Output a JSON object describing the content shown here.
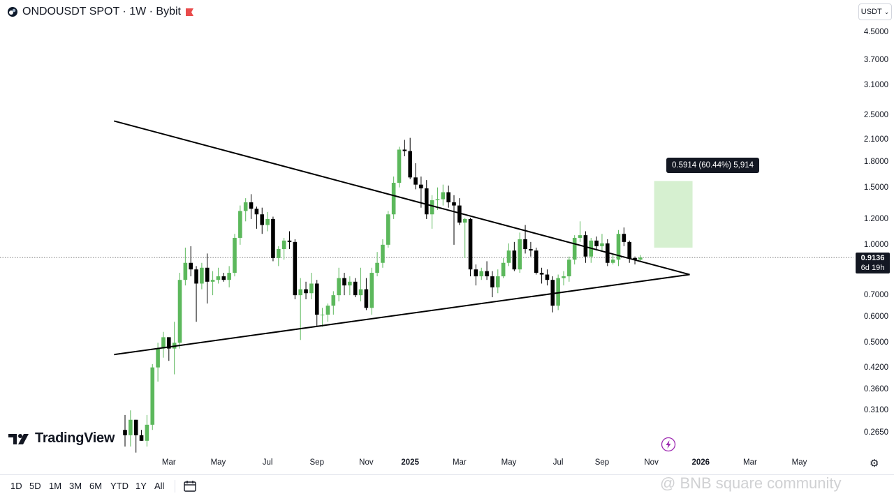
{
  "header": {
    "title": "ONDOUSDT SPOT · 1W · Bybit"
  },
  "currency_button": {
    "label": "USDT"
  },
  "price_tag": {
    "price": "0.9136",
    "countdown": "6d 19h"
  },
  "measure": {
    "label": "0.5914 (60.44%) 5,914"
  },
  "logo": {
    "text": "TradingView"
  },
  "ranges": [
    "1D",
    "5D",
    "1M",
    "3M",
    "6M",
    "YTD",
    "1Y",
    "All"
  ],
  "watermark": "@ BNB square community",
  "colors": {
    "up": "#5cb85c",
    "down": "#000000",
    "measure_fill": "#d6f0d0",
    "accent": "#e94b4b"
  },
  "chart_data": {
    "type": "candlestick",
    "interval": "1W",
    "scale": "log",
    "y_ticks": [
      "4.5000",
      "3.7000",
      "3.1000",
      "2.5000",
      "2.1000",
      "1.8000",
      "1.5000",
      "1.2000",
      "1.0000",
      "0.7000",
      "0.6000",
      "0.5000",
      "0.4200",
      "0.3600",
      "0.3100",
      "0.2650"
    ],
    "x_ticks": [
      {
        "label": "Mar",
        "week": 8
      },
      {
        "label": "May",
        "week": 17
      },
      {
        "label": "Jul",
        "week": 26
      },
      {
        "label": "Sep",
        "week": 35
      },
      {
        "label": "Nov",
        "week": 44
      },
      {
        "label": "2025",
        "week": 52
      },
      {
        "label": "Mar",
        "week": 61
      },
      {
        "label": "May",
        "week": 70
      },
      {
        "label": "Jul",
        "week": 79
      },
      {
        "label": "Sep",
        "week": 87
      },
      {
        "label": "Nov",
        "week": 96
      },
      {
        "label": "2026",
        "week": 105
      },
      {
        "label": "Mar",
        "week": 114
      },
      {
        "label": "May",
        "week": 123
      }
    ],
    "candles": [
      [
        0.27,
        0.3,
        0.24,
        0.26
      ],
      [
        0.26,
        0.31,
        0.24,
        0.29
      ],
      [
        0.29,
        0.29,
        0.23,
        0.26
      ],
      [
        0.26,
        0.27,
        0.25,
        0.25
      ],
      [
        0.25,
        0.3,
        0.24,
        0.28
      ],
      [
        0.28,
        0.43,
        0.27,
        0.42
      ],
      [
        0.42,
        0.5,
        0.38,
        0.48
      ],
      [
        0.48,
        0.54,
        0.45,
        0.52
      ],
      [
        0.52,
        0.52,
        0.44,
        0.48
      ],
      [
        0.48,
        0.58,
        0.4,
        0.5
      ],
      [
        0.5,
        0.82,
        0.48,
        0.78
      ],
      [
        0.78,
        0.98,
        0.75,
        0.88
      ],
      [
        0.88,
        0.99,
        0.8,
        0.84
      ],
      [
        0.84,
        0.86,
        0.58,
        0.76
      ],
      [
        0.76,
        0.88,
        0.73,
        0.85
      ],
      [
        0.85,
        0.94,
        0.66,
        0.77
      ],
      [
        0.77,
        0.83,
        0.7,
        0.78
      ],
      [
        0.78,
        0.85,
        0.76,
        0.8
      ],
      [
        0.8,
        0.82,
        0.77,
        0.78
      ],
      [
        0.78,
        0.86,
        0.74,
        0.82
      ],
      [
        0.82,
        1.08,
        0.8,
        1.05
      ],
      [
        1.05,
        1.32,
        1.0,
        1.27
      ],
      [
        1.27,
        1.39,
        1.18,
        1.35
      ],
      [
        1.35,
        1.43,
        1.2,
        1.29
      ],
      [
        1.29,
        1.31,
        1.12,
        1.24
      ],
      [
        1.24,
        1.3,
        1.08,
        1.15
      ],
      [
        1.15,
        1.26,
        1.1,
        1.2
      ],
      [
        1.2,
        1.22,
        0.89,
        0.91
      ],
      [
        0.91,
        0.99,
        0.86,
        0.97
      ],
      [
        0.97,
        1.05,
        0.9,
        1.03
      ],
      [
        1.03,
        1.1,
        0.97,
        1.02
      ],
      [
        1.02,
        1.04,
        0.68,
        0.7
      ],
      [
        0.7,
        0.79,
        0.51,
        0.73
      ],
      [
        0.73,
        0.77,
        0.68,
        0.71
      ],
      [
        0.71,
        0.82,
        0.68,
        0.76
      ],
      [
        0.76,
        0.78,
        0.56,
        0.61
      ],
      [
        0.61,
        0.64,
        0.56,
        0.61
      ],
      [
        0.61,
        0.66,
        0.58,
        0.65
      ],
      [
        0.65,
        0.72,
        0.61,
        0.7
      ],
      [
        0.7,
        0.85,
        0.67,
        0.79
      ],
      [
        0.79,
        0.82,
        0.7,
        0.75
      ],
      [
        0.75,
        0.8,
        0.7,
        0.77
      ],
      [
        0.77,
        0.79,
        0.69,
        0.7
      ],
      [
        0.7,
        0.85,
        0.67,
        0.73
      ],
      [
        0.73,
        0.79,
        0.63,
        0.64
      ],
      [
        0.64,
        0.85,
        0.61,
        0.82
      ],
      [
        0.82,
        0.95,
        0.8,
        0.88
      ],
      [
        0.88,
        1.04,
        0.85,
        1.0
      ],
      [
        1.0,
        1.27,
        0.98,
        1.24
      ],
      [
        1.24,
        1.62,
        1.2,
        1.55
      ],
      [
        1.55,
        2.0,
        1.5,
        1.96
      ],
      [
        1.96,
        2.1,
        1.87,
        1.94
      ],
      [
        1.94,
        2.13,
        1.59,
        1.61
      ],
      [
        1.61,
        1.78,
        1.48,
        1.53
      ],
      [
        1.53,
        1.62,
        1.3,
        1.49
      ],
      [
        1.49,
        1.58,
        1.2,
        1.24
      ],
      [
        1.24,
        1.42,
        1.12,
        1.37
      ],
      [
        1.37,
        1.5,
        1.28,
        1.38
      ],
      [
        1.38,
        1.53,
        1.32,
        1.45
      ],
      [
        1.45,
        1.52,
        1.3,
        1.35
      ],
      [
        1.35,
        1.42,
        1.0,
        1.32
      ],
      [
        1.32,
        1.39,
        1.15,
        1.17
      ],
      [
        1.17,
        1.21,
        0.91,
        1.2
      ],
      [
        1.2,
        1.21,
        0.8,
        0.84
      ],
      [
        0.84,
        0.87,
        0.75,
        0.8
      ],
      [
        0.8,
        0.85,
        0.78,
        0.83
      ],
      [
        0.83,
        0.89,
        0.78,
        0.8
      ],
      [
        0.8,
        0.83,
        0.69,
        0.74
      ],
      [
        0.74,
        0.84,
        0.71,
        0.8
      ],
      [
        0.8,
        0.91,
        0.79,
        0.88
      ],
      [
        0.88,
        1.01,
        0.86,
        0.96
      ],
      [
        0.96,
        1.02,
        0.83,
        0.84
      ],
      [
        0.84,
        1.09,
        0.82,
        1.04
      ],
      [
        1.04,
        1.15,
        0.94,
        0.97
      ],
      [
        0.97,
        1.02,
        0.92,
        0.96
      ],
      [
        0.96,
        0.98,
        0.81,
        0.82
      ],
      [
        0.82,
        0.85,
        0.76,
        0.81
      ],
      [
        0.81,
        0.84,
        0.75,
        0.78
      ],
      [
        0.78,
        0.8,
        0.62,
        0.65
      ],
      [
        0.65,
        0.81,
        0.63,
        0.79
      ],
      [
        0.79,
        0.83,
        0.75,
        0.8
      ],
      [
        0.8,
        0.92,
        0.77,
        0.9
      ],
      [
        0.9,
        1.07,
        0.87,
        1.05
      ],
      [
        1.05,
        1.18,
        1.02,
        1.07
      ],
      [
        1.07,
        1.1,
        0.88,
        0.92
      ],
      [
        0.92,
        1.05,
        0.88,
        1.03
      ],
      [
        1.03,
        1.06,
        0.96,
        0.99
      ],
      [
        0.99,
        1.08,
        0.96,
        1.01
      ],
      [
        1.01,
        1.04,
        0.86,
        0.88
      ],
      [
        0.88,
        0.93,
        0.87,
        0.9
      ],
      [
        0.9,
        1.11,
        0.86,
        1.08
      ],
      [
        1.08,
        1.13,
        0.99,
        1.02
      ],
      [
        1.02,
        1.03,
        0.88,
        0.91
      ],
      [
        0.91,
        0.92,
        0.87,
        0.9
      ],
      [
        0.9,
        0.93,
        0.89,
        0.9136
      ]
    ],
    "trendlines": [
      {
        "from_week": -2,
        "from_price": 2.4,
        "to_week": 103,
        "to_price": 0.81
      },
      {
        "from_week": -2,
        "from_price": 0.46,
        "to_week": 103,
        "to_price": 0.81
      }
    ],
    "measure_box": {
      "week_from": 96,
      "week_to": 103,
      "price_from": 0.98,
      "price_to": 1.57
    },
    "current_price": 0.9136
  }
}
